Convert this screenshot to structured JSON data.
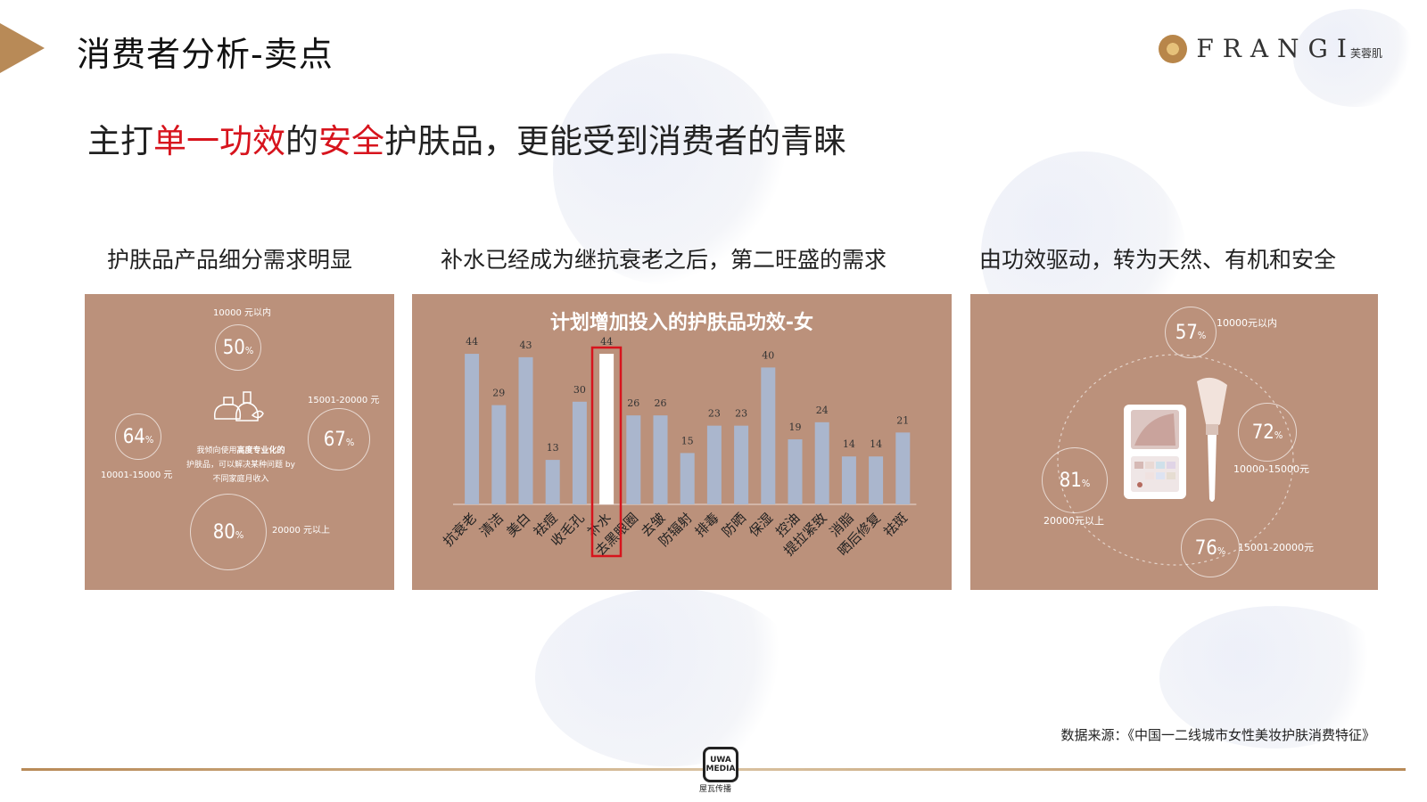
{
  "page": {
    "title": "消费者分析-卖点",
    "headline": {
      "p1": "主打",
      "p2": "单一功效",
      "p3": "的",
      "p4": "安全",
      "p5": "护肤品，更能受到消费者的青睐"
    },
    "source": "数据来源：《中国一二线城市女性美妆护肤消费特征》"
  },
  "logo": {
    "brand": "FRANGI",
    "cn": "芙蓉肌"
  },
  "footer": {
    "badge": "UWA MEDIA",
    "cn": "屋瓦传播"
  },
  "columns": {
    "c1": "护肤品产品细分需求明显",
    "c2": "补水已经成为继抗衰老之后，第二旺盛的需求",
    "c3": "由功效驱动，转为天然、有机和安全"
  },
  "panel1": {
    "stats": [
      {
        "num": "50",
        "unit": "%",
        "label": "10000 元以内"
      },
      {
        "num": "67",
        "unit": "%",
        "label": "15001-20000 元"
      },
      {
        "num": "80",
        "unit": "%",
        "label": "20000 元以上"
      },
      {
        "num": "64",
        "unit": "%",
        "label": "10001-15000 元"
      }
    ],
    "note_a": "我倾向使用",
    "note_b": "高度专业化的",
    "note_c": "护肤品，可以解决某种问题 by",
    "note_d": "不同家庭月收入"
  },
  "panel3": {
    "stats": [
      {
        "num": "57",
        "unit": "%",
        "label": "10000元以内"
      },
      {
        "num": "72",
        "unit": "%",
        "label": "10000-15000元"
      },
      {
        "num": "76",
        "unit": "%",
        "label": "15001-20000元"
      },
      {
        "num": "81",
        "unit": "%",
        "label": "20000元以上"
      }
    ]
  },
  "colors": {
    "panel": "#bb917b",
    "bar": "#aab6cd",
    "highlight_box": "#d7141d",
    "accent": "#b88a57",
    "headline_red": "#d7141d"
  },
  "chart_data": {
    "type": "bar",
    "title": "计划增加投入的护肤品功效-女",
    "categories": [
      "抗衰老",
      "清洁",
      "美白",
      "祛痘",
      "收毛孔",
      "补水",
      "去黑眼圈",
      "去皱",
      "防辐射",
      "排毒",
      "防晒",
      "保湿",
      "控油",
      "提拉紧致",
      "消脂",
      "晒后修复",
      "祛斑"
    ],
    "values": [
      44,
      29,
      43,
      13,
      30,
      44,
      26,
      26,
      15,
      23,
      23,
      40,
      19,
      24,
      14,
      14,
      21
    ],
    "highlight": "补水",
    "ylim": [
      0,
      50
    ],
    "grid": false,
    "legend": "none"
  }
}
